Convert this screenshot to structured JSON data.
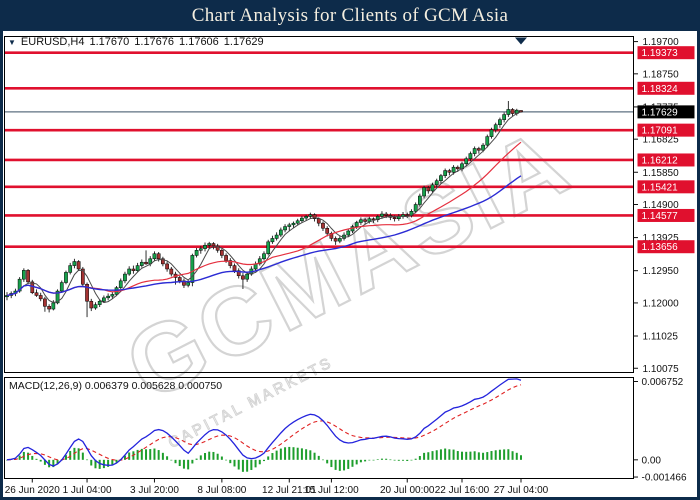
{
  "title_bar": {
    "title": "Chart Analysis for Clients of GCM Asia"
  },
  "symbol_header": {
    "dropdown_icon": "▼",
    "symbol": "EURUSD,H4",
    "open": "1.17670",
    "high": "1.17676",
    "low": "1.17606",
    "close": "1.17629"
  },
  "watermark": {
    "text": "GCMASIA",
    "subtext": "CAPITAL MARKETS"
  },
  "colors": {
    "navy": "#0d2b4a",
    "panel_bg": "#ffffff",
    "border": "#000000",
    "line_red": "#e0102e",
    "label_text": "#ffffff",
    "current_label_bg": "#000000",
    "current_line": "#5f7082",
    "candle_up": "#17a04b",
    "candle_down": "#a43232",
    "wick": "#1a1a1a",
    "ma_fast": "#4a4a4a",
    "ma_mid": "#e5303f",
    "ma_slow": "#2b2bd4",
    "macd_line": "#2424dd",
    "macd_signal": "#e02222",
    "macd_hist": "#1d9e2c",
    "watermark": "#d4d4d4",
    "axis_text": "#111111",
    "title_text": "#f3eee0"
  },
  "chart_data": [
    {
      "type": "candlestick",
      "symbol": "EURUSD",
      "timeframe": "H4",
      "ylim": [
        1.0995,
        1.1985
      ],
      "grid": false,
      "y_ticks": [
        {
          "label": "1.19700",
          "value": 1.197
        },
        {
          "label": "1.18750",
          "value": 1.1875
        },
        {
          "label": "1.17775",
          "value": 1.17775
        },
        {
          "label": "1.16825",
          "value": 1.16825
        },
        {
          "label": "1.15850",
          "value": 1.1585
        },
        {
          "label": "1.14900",
          "value": 1.149
        },
        {
          "label": "1.13925",
          "value": 1.13925
        },
        {
          "label": "1.12950",
          "value": 1.1295
        },
        {
          "label": "1.12000",
          "value": 1.12
        },
        {
          "label": "1.11025",
          "value": 1.11025
        },
        {
          "label": "1.10075",
          "value": 1.10075
        }
      ],
      "hlines": [
        {
          "label": "1.19373",
          "value": 1.19373
        },
        {
          "label": "1.18324",
          "value": 1.18324
        },
        {
          "label": "1.17091",
          "value": 1.17091
        },
        {
          "label": "1.16212",
          "value": 1.16212
        },
        {
          "label": "1.15421",
          "value": 1.15421
        },
        {
          "label": "1.14577",
          "value": 1.14577
        },
        {
          "label": "1.13656",
          "value": 1.13656
        }
      ],
      "current_price": {
        "label": "1.17629",
        "value": 1.17629
      },
      "x_ticks": [
        {
          "label": "26 Jun 2020",
          "bar": 6
        },
        {
          "label": "1 Jul 04:00",
          "bar": 19
        },
        {
          "label": "3 Jul 20:00",
          "bar": 35
        },
        {
          "label": "8 Jul 08:00",
          "bar": 51
        },
        {
          "label": "12 Jul 21:01",
          "bar": 67
        },
        {
          "label": "15 Jul 12:00",
          "bar": 77
        },
        {
          "label": "20 Jul 00:00",
          "bar": 95
        },
        {
          "label": "22 Jul 16:00",
          "bar": 108
        },
        {
          "label": "27 Jul 04:00",
          "bar": 122
        }
      ],
      "moving_averages": [
        {
          "period": 5,
          "color": "#4a4a4a"
        },
        {
          "period": 20,
          "color": "#e5303f"
        },
        {
          "period": 40,
          "color": "#2b2bd4"
        }
      ],
      "candles": [
        [
          1.1218,
          1.1232,
          1.1208,
          1.1222
        ],
        [
          1.1222,
          1.1234,
          1.1214,
          1.1228
        ],
        [
          1.1228,
          1.1242,
          1.122,
          1.1235
        ],
        [
          1.1235,
          1.1276,
          1.123,
          1.127
        ],
        [
          1.127,
          1.1302,
          1.1262,
          1.1296
        ],
        [
          1.1296,
          1.13,
          1.1256,
          1.1262
        ],
        [
          1.1262,
          1.1268,
          1.1226,
          1.123
        ],
        [
          1.123,
          1.124,
          1.1218,
          1.1222
        ],
        [
          1.1222,
          1.123,
          1.1205,
          1.1212
        ],
        [
          1.1212,
          1.1218,
          1.1174,
          1.119
        ],
        [
          1.119,
          1.1196,
          1.1172,
          1.1182
        ],
        [
          1.1182,
          1.1208,
          1.1178,
          1.12
        ],
        [
          1.12,
          1.124,
          1.1196,
          1.1235
        ],
        [
          1.1235,
          1.1266,
          1.123,
          1.126
        ],
        [
          1.126,
          1.1295,
          1.1255,
          1.129
        ],
        [
          1.129,
          1.1318,
          1.1284,
          1.131
        ],
        [
          1.131,
          1.133,
          1.1302,
          1.1322
        ],
        [
          1.1322,
          1.1326,
          1.1294,
          1.13
        ],
        [
          1.13,
          1.1306,
          1.1248,
          1.1255
        ],
        [
          1.1255,
          1.126,
          1.1158,
          1.1205
        ],
        [
          1.1205,
          1.1212,
          1.1176,
          1.1185
        ],
        [
          1.1185,
          1.1202,
          1.118,
          1.1195
        ],
        [
          1.1195,
          1.121,
          1.1188,
          1.1205
        ],
        [
          1.1205,
          1.1222,
          1.12,
          1.1215
        ],
        [
          1.1215,
          1.1228,
          1.1208,
          1.122
        ],
        [
          1.122,
          1.1232,
          1.1212,
          1.1225
        ],
        [
          1.1225,
          1.125,
          1.122,
          1.1245
        ],
        [
          1.1245,
          1.1272,
          1.124,
          1.1265
        ],
        [
          1.1265,
          1.1292,
          1.1258,
          1.1285
        ],
        [
          1.1285,
          1.1308,
          1.128,
          1.13
        ],
        [
          1.13,
          1.131,
          1.1286,
          1.1295
        ],
        [
          1.1295,
          1.1318,
          1.129,
          1.131
        ],
        [
          1.131,
          1.1328,
          1.1304,
          1.132
        ],
        [
          1.132,
          1.1355,
          1.1312,
          1.1315
        ],
        [
          1.1315,
          1.1338,
          1.1308,
          1.133
        ],
        [
          1.133,
          1.1352,
          1.1324,
          1.1345
        ],
        [
          1.1345,
          1.135,
          1.1322,
          1.133
        ],
        [
          1.133,
          1.1336,
          1.1308,
          1.1315
        ],
        [
          1.1315,
          1.1322,
          1.1292,
          1.13
        ],
        [
          1.13,
          1.1306,
          1.1278,
          1.1285
        ],
        [
          1.1285,
          1.1292,
          1.1254,
          1.1275
        ],
        [
          1.1275,
          1.128,
          1.1258,
          1.1265
        ],
        [
          1.1265,
          1.1272,
          1.1244,
          1.1252
        ],
        [
          1.1252,
          1.1268,
          1.1246,
          1.126
        ],
        [
          1.126,
          1.1345,
          1.1249,
          1.134
        ],
        [
          1.134,
          1.1362,
          1.1334,
          1.1355
        ],
        [
          1.1355,
          1.1368,
          1.1345,
          1.136
        ],
        [
          1.136,
          1.1378,
          1.1352,
          1.137
        ],
        [
          1.137,
          1.138,
          1.136,
          1.1375
        ],
        [
          1.1375,
          1.1379,
          1.1358,
          1.1368
        ],
        [
          1.1368,
          1.1374,
          1.1348,
          1.1355
        ],
        [
          1.1355,
          1.136,
          1.1332,
          1.134
        ],
        [
          1.134,
          1.1346,
          1.1318,
          1.1325
        ],
        [
          1.1325,
          1.1332,
          1.1302,
          1.131
        ],
        [
          1.131,
          1.1316,
          1.1288,
          1.1295
        ],
        [
          1.1295,
          1.1302,
          1.1272,
          1.128
        ],
        [
          1.128,
          1.1288,
          1.1241,
          1.127
        ],
        [
          1.127,
          1.129,
          1.1262,
          1.1285
        ],
        [
          1.1285,
          1.1308,
          1.128,
          1.13
        ],
        [
          1.13,
          1.1322,
          1.1295,
          1.1315
        ],
        [
          1.1315,
          1.1338,
          1.131,
          1.133
        ],
        [
          1.133,
          1.1352,
          1.1325,
          1.1345
        ],
        [
          1.1345,
          1.1386,
          1.134,
          1.138
        ],
        [
          1.138,
          1.1398,
          1.1374,
          1.139
        ],
        [
          1.139,
          1.1408,
          1.1384,
          1.14
        ],
        [
          1.14,
          1.1422,
          1.1394,
          1.1415
        ],
        [
          1.1415,
          1.1432,
          1.1408,
          1.1425
        ],
        [
          1.1425,
          1.1436,
          1.1412,
          1.143
        ],
        [
          1.143,
          1.144,
          1.142,
          1.1435
        ],
        [
          1.1435,
          1.1448,
          1.1428,
          1.1442
        ],
        [
          1.1442,
          1.1456,
          1.1436,
          1.145
        ],
        [
          1.145,
          1.146,
          1.1442,
          1.1455
        ],
        [
          1.1455,
          1.1466,
          1.1448,
          1.146
        ],
        [
          1.146,
          1.1464,
          1.144,
          1.1448
        ],
        [
          1.1448,
          1.1452,
          1.1426,
          1.1435
        ],
        [
          1.1435,
          1.144,
          1.1412,
          1.142
        ],
        [
          1.142,
          1.1426,
          1.1396,
          1.1405
        ],
        [
          1.1405,
          1.141,
          1.1382,
          1.139
        ],
        [
          1.139,
          1.1396,
          1.1371,
          1.1382
        ],
        [
          1.1382,
          1.1396,
          1.1376,
          1.139
        ],
        [
          1.139,
          1.1408,
          1.1384,
          1.14
        ],
        [
          1.14,
          1.1418,
          1.1394,
          1.1412
        ],
        [
          1.1412,
          1.143,
          1.1406,
          1.1425
        ],
        [
          1.1425,
          1.1442,
          1.1418,
          1.1437
        ],
        [
          1.1437,
          1.1452,
          1.143,
          1.1445
        ],
        [
          1.1445,
          1.145,
          1.1432,
          1.144
        ],
        [
          1.144,
          1.1454,
          1.1434,
          1.1448
        ],
        [
          1.1448,
          1.1452,
          1.1436,
          1.1445
        ],
        [
          1.1445,
          1.146,
          1.1438,
          1.1455
        ],
        [
          1.1455,
          1.147,
          1.1448,
          1.1462
        ],
        [
          1.1462,
          1.1468,
          1.145,
          1.1458
        ],
        [
          1.1458,
          1.1464,
          1.1444,
          1.1452
        ],
        [
          1.1452,
          1.1458,
          1.144,
          1.1448
        ],
        [
          1.1448,
          1.1462,
          1.1442,
          1.1455
        ],
        [
          1.1455,
          1.1468,
          1.1448,
          1.146
        ],
        [
          1.146,
          1.1466,
          1.145,
          1.1458
        ],
        [
          1.1458,
          1.1476,
          1.1452,
          1.147
        ],
        [
          1.147,
          1.1496,
          1.1464,
          1.149
        ],
        [
          1.149,
          1.1522,
          1.1484,
          1.1515
        ],
        [
          1.1515,
          1.1546,
          1.1508,
          1.154
        ],
        [
          1.154,
          1.1545,
          1.1522,
          1.153
        ],
        [
          1.153,
          1.1554,
          1.1524,
          1.1548
        ],
        [
          1.1548,
          1.1566,
          1.154,
          1.156
        ],
        [
          1.156,
          1.158,
          1.1552,
          1.1575
        ],
        [
          1.1575,
          1.1596,
          1.1568,
          1.159
        ],
        [
          1.159,
          1.1595,
          1.1576,
          1.1585
        ],
        [
          1.1585,
          1.1606,
          1.1578,
          1.16
        ],
        [
          1.16,
          1.1605,
          1.1586,
          1.1595
        ],
        [
          1.1595,
          1.1616,
          1.1588,
          1.161
        ],
        [
          1.161,
          1.1631,
          1.1602,
          1.1625
        ],
        [
          1.1625,
          1.1646,
          1.1618,
          1.164
        ],
        [
          1.164,
          1.1661,
          1.1632,
          1.1655
        ],
        [
          1.1655,
          1.166,
          1.164,
          1.165
        ],
        [
          1.165,
          1.1671,
          1.1644,
          1.1665
        ],
        [
          1.1665,
          1.1696,
          1.1658,
          1.169
        ],
        [
          1.169,
          1.1716,
          1.1684,
          1.171
        ],
        [
          1.171,
          1.1731,
          1.1702,
          1.1725
        ],
        [
          1.1725,
          1.1746,
          1.1716,
          1.174
        ],
        [
          1.174,
          1.1761,
          1.1732,
          1.1755
        ],
        [
          1.1755,
          1.1795,
          1.1748,
          1.177
        ],
        [
          1.177,
          1.1774,
          1.175,
          1.1758
        ],
        [
          1.1758,
          1.1772,
          1.1752,
          1.1768
        ],
        [
          1.1767,
          1.17676,
          1.17606,
          1.17629
        ]
      ]
    },
    {
      "type": "line",
      "name": "MACD",
      "label": "MACD(12,26,9)",
      "values_text": [
        "0.006379",
        "0.005628",
        "0.000750"
      ],
      "params": {
        "fast": 12,
        "slow": 26,
        "signal": 9
      },
      "ylim": [
        -0.00159,
        0.00701
      ],
      "y_ticks": [
        {
          "label": "0.006752",
          "value": 0.006752
        },
        {
          "label": "0.00",
          "value": 0
        },
        {
          "label": "-0.001466",
          "value": -0.001466
        }
      ]
    }
  ]
}
